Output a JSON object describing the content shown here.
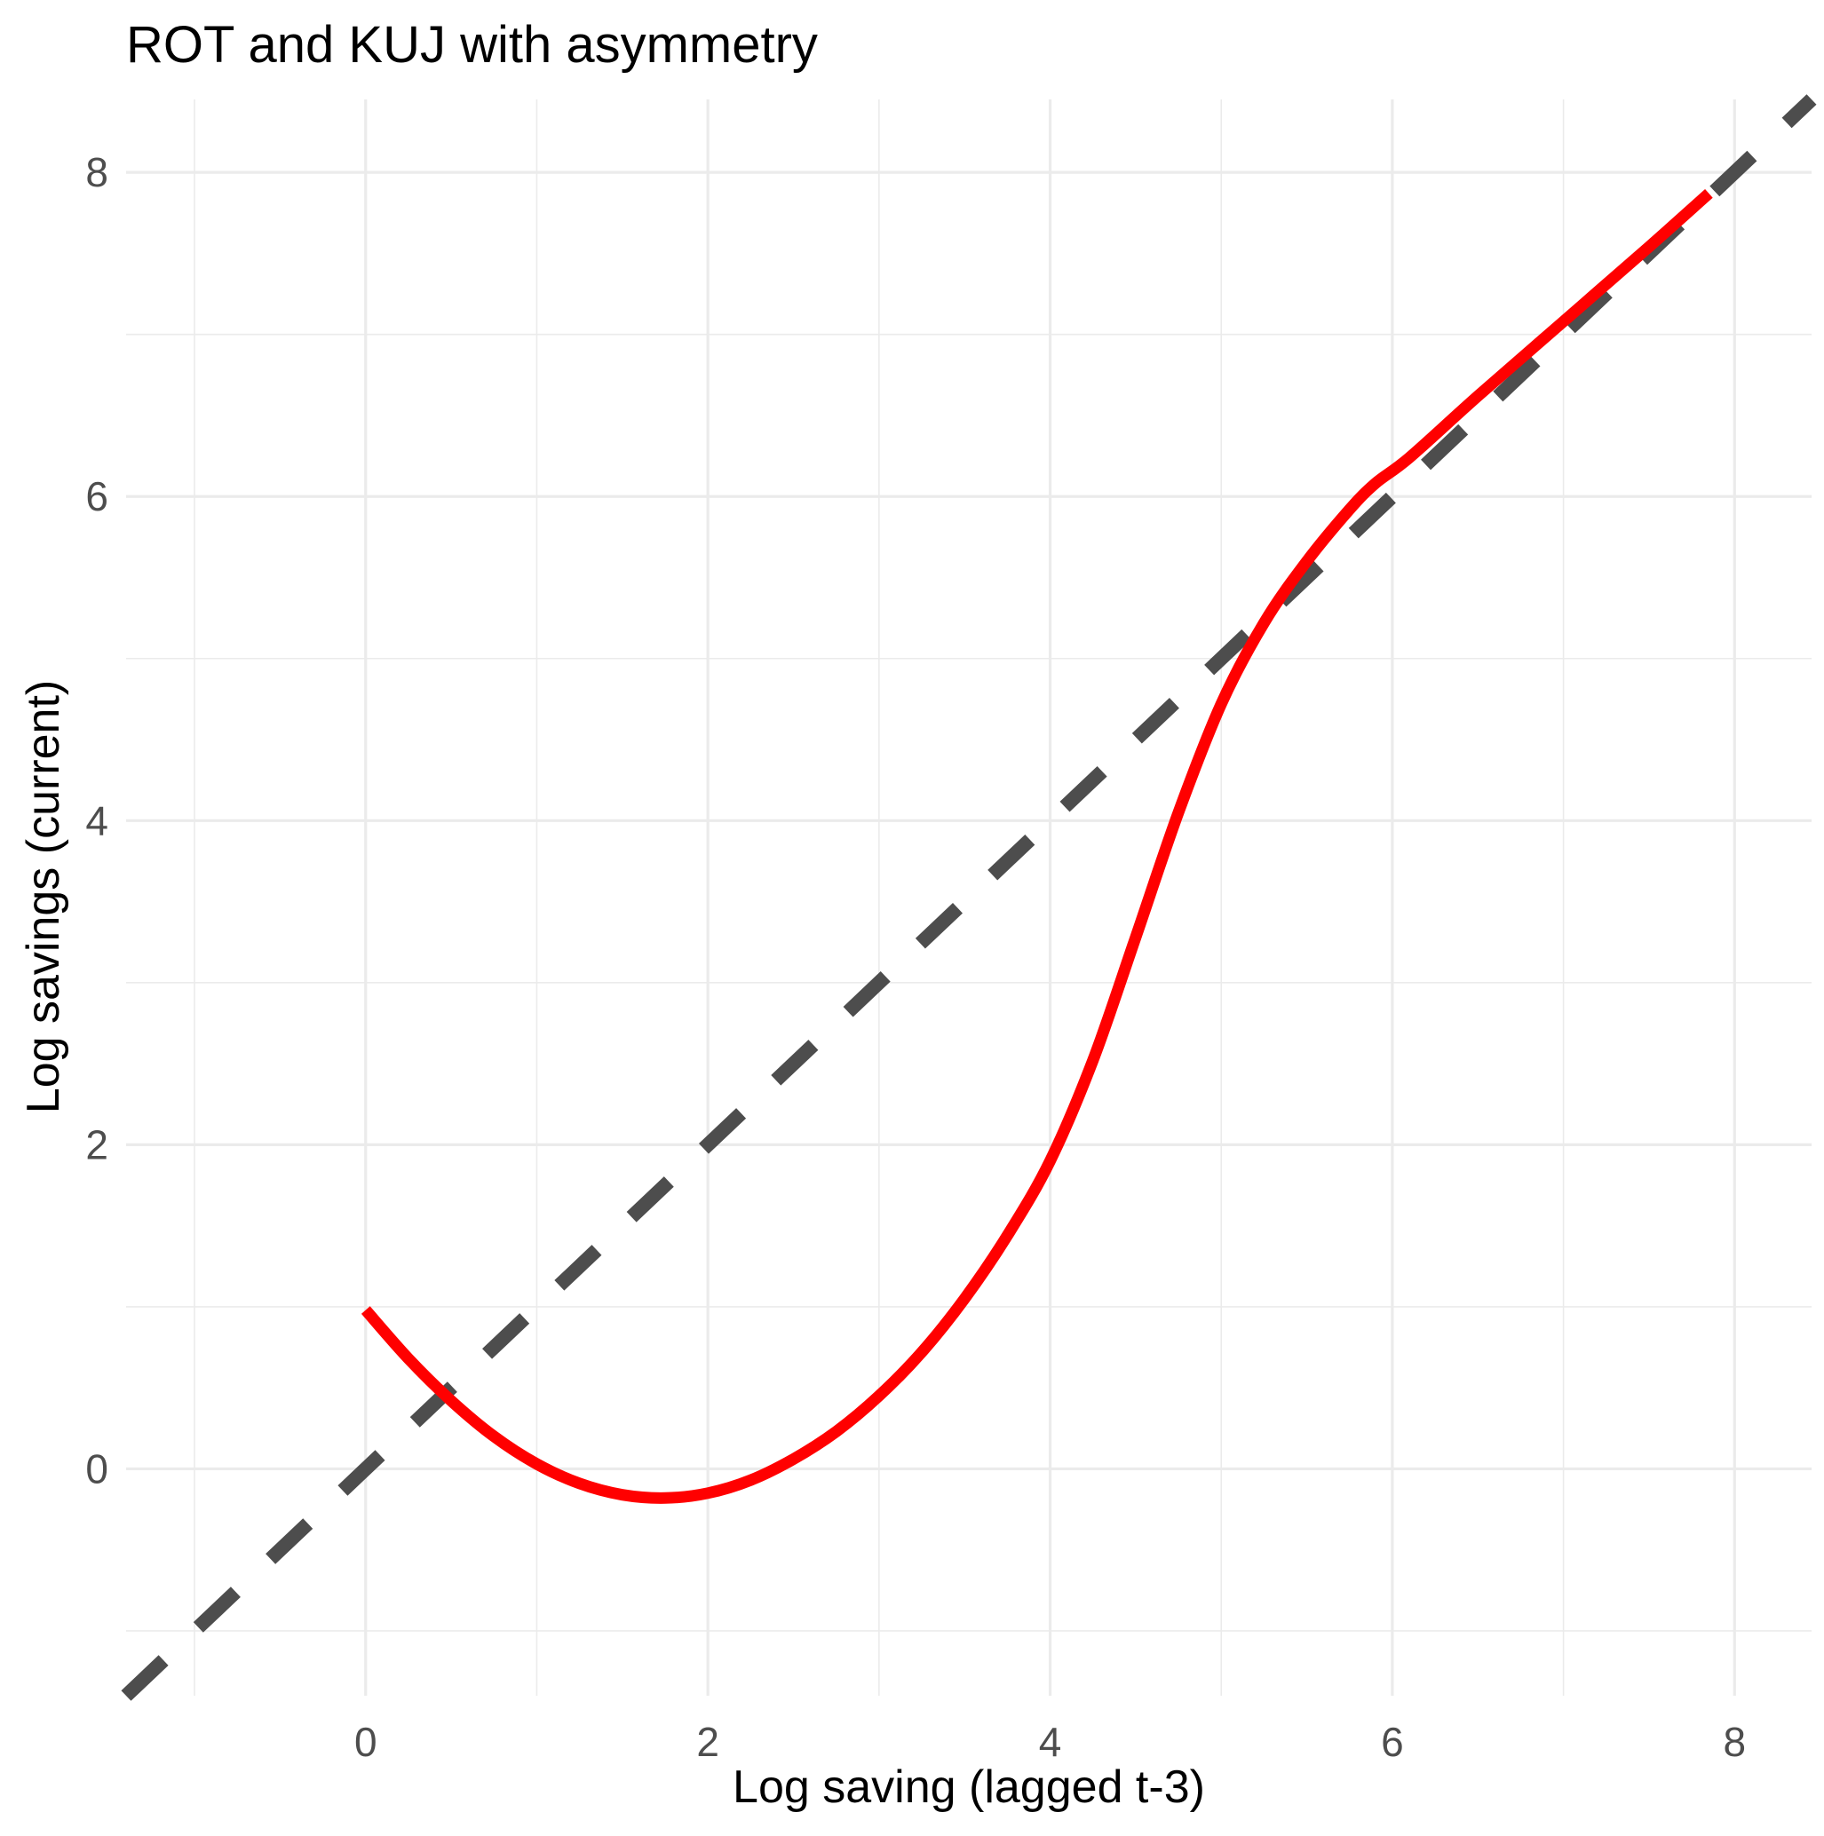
{
  "chart_data": {
    "type": "line",
    "title": "ROT and KUJ with asymmetry",
    "xlabel": "Log saving (lagged t-3)",
    "ylabel": "Log savings (current)",
    "xlim": [
      -1.4,
      8.45
    ],
    "ylim": [
      -1.4,
      8.45
    ],
    "x_ticks": [
      0,
      2,
      4,
      6,
      8
    ],
    "y_ticks": [
      0,
      2,
      4,
      6,
      8
    ],
    "x_tick_labels": [
      "0",
      "2",
      "4",
      "6",
      "8"
    ],
    "y_tick_labels": [
      "0",
      "2",
      "4",
      "6",
      "8"
    ],
    "grid": true,
    "legend": "none",
    "series": [
      {
        "style": "solid",
        "color": "#ff0000",
        "x": [
          0.0,
          0.25,
          0.5,
          0.75,
          1.0,
          1.25,
          1.5,
          1.75,
          2.0,
          2.25,
          2.5,
          2.75,
          3.0,
          3.25,
          3.5,
          3.75,
          4.0,
          4.25,
          4.5,
          4.75,
          5.0,
          5.25,
          5.5,
          5.75,
          5.9,
          6.1,
          6.5,
          7.0,
          7.5,
          7.85
        ],
        "y": [
          0.98,
          0.68,
          0.42,
          0.2,
          0.03,
          -0.09,
          -0.16,
          -0.18,
          -0.15,
          -0.07,
          0.06,
          0.23,
          0.45,
          0.72,
          1.05,
          1.44,
          1.9,
          2.52,
          3.28,
          4.05,
          4.72,
          5.22,
          5.6,
          5.92,
          6.08,
          6.24,
          6.62,
          7.08,
          7.54,
          7.87
        ]
      },
      {
        "style": "dashed",
        "color": "#4d4d4d",
        "x": [
          -1.4,
          8.45
        ],
        "y": [
          -1.4,
          8.45
        ]
      }
    ]
  }
}
